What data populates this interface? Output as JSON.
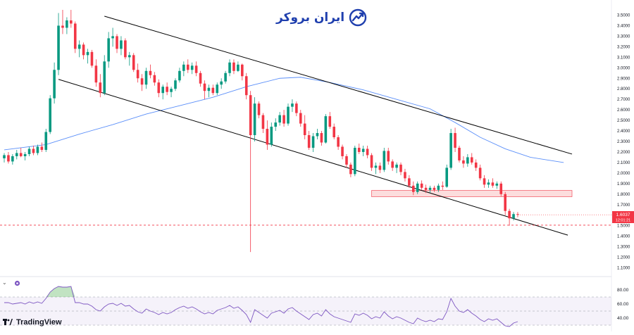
{
  "brand": {
    "name": "ایران بروکر",
    "logo_icon": "trend-arrow-logo-icon"
  },
  "footer": {
    "platform": "TradingView",
    "logo_icon": "tradingview-logo-icon"
  },
  "price_label": {
    "price": "1.6037",
    "countdown": "12:01:21",
    "color": "#f23645"
  },
  "controls": {
    "collapse_icon": "chevron-down-icon",
    "settings_icon": "indicator-gear-icon"
  },
  "chart_data": [
    {
      "type": "candlestick",
      "y_ticks": [
        "3.5000",
        "3.4000",
        "3.3000",
        "3.2000",
        "3.1000",
        "3.0000",
        "2.9000",
        "2.8000",
        "2.7000",
        "2.6000",
        "2.5000",
        "2.4000",
        "2.3000",
        "2.2000",
        "2.1000",
        "2.0000",
        "1.9000",
        "1.8000",
        "1.7000",
        "1.6000",
        "1.5000",
        "1.4000",
        "1.3000",
        "1.2000",
        "1.1000"
      ],
      "ylim": [
        1.05,
        3.55
      ],
      "x_range": [
        0,
        136
      ],
      "candles": [
        [
          0,
          2.14,
          2.19,
          2.1,
          2.17
        ],
        [
          1,
          2.17,
          2.2,
          2.09,
          2.11
        ],
        [
          2,
          2.11,
          2.18,
          2.08,
          2.16
        ],
        [
          3,
          2.16,
          2.22,
          2.13,
          2.19
        ],
        [
          4,
          2.19,
          2.24,
          2.15,
          2.16
        ],
        [
          5,
          2.16,
          2.2,
          2.12,
          2.18
        ],
        [
          6,
          2.18,
          2.25,
          2.16,
          2.23
        ],
        [
          7,
          2.23,
          2.26,
          2.17,
          2.19
        ],
        [
          8,
          2.19,
          2.27,
          2.17,
          2.25
        ],
        [
          9,
          2.25,
          2.29,
          2.2,
          2.22
        ],
        [
          10,
          2.22,
          2.42,
          2.2,
          2.39
        ],
        [
          11,
          2.39,
          2.74,
          2.37,
          2.71
        ],
        [
          12,
          2.71,
          3.05,
          2.66,
          2.98
        ],
        [
          13,
          2.98,
          3.52,
          2.93,
          3.4
        ],
        [
          14,
          3.4,
          3.55,
          3.32,
          3.38
        ],
        [
          15,
          3.38,
          3.48,
          3.32,
          3.45
        ],
        [
          16,
          3.45,
          3.55,
          3.38,
          3.42
        ],
        [
          17,
          3.42,
          3.44,
          3.14,
          3.18
        ],
        [
          18,
          3.18,
          3.26,
          3.1,
          3.22
        ],
        [
          19,
          3.22,
          3.24,
          3.08,
          3.12
        ],
        [
          20,
          3.12,
          3.18,
          3.04,
          3.15
        ],
        [
          21,
          3.15,
          3.17,
          3.0,
          3.02
        ],
        [
          22,
          3.02,
          3.08,
          2.82,
          2.86
        ],
        [
          23,
          2.86,
          2.94,
          2.72,
          2.76
        ],
        [
          24,
          2.76,
          3.12,
          2.74,
          3.06
        ],
        [
          25,
          3.06,
          3.34,
          3.0,
          3.28
        ],
        [
          26,
          3.28,
          3.38,
          3.2,
          3.3
        ],
        [
          27,
          3.3,
          3.32,
          3.14,
          3.18
        ],
        [
          28,
          3.18,
          3.3,
          3.12,
          3.26
        ],
        [
          29,
          3.26,
          3.28,
          3.08,
          3.1
        ],
        [
          30,
          3.1,
          3.15,
          3.02,
          3.12
        ],
        [
          31,
          3.12,
          3.14,
          2.96,
          2.98
        ],
        [
          32,
          2.98,
          3.04,
          2.86,
          2.9
        ],
        [
          33,
          2.9,
          2.94,
          2.78,
          2.84
        ],
        [
          34,
          2.84,
          3.0,
          2.8,
          2.97
        ],
        [
          35,
          2.97,
          3.03,
          2.9,
          2.93
        ],
        [
          36,
          2.93,
          2.96,
          2.83,
          2.86
        ],
        [
          37,
          2.86,
          2.89,
          2.72,
          2.76
        ],
        [
          38,
          2.76,
          2.84,
          2.7,
          2.82
        ],
        [
          39,
          2.82,
          2.86,
          2.74,
          2.77
        ],
        [
          40,
          2.77,
          2.82,
          2.72,
          2.8
        ],
        [
          41,
          2.8,
          2.9,
          2.78,
          2.88
        ],
        [
          42,
          2.88,
          3.0,
          2.86,
          2.97
        ],
        [
          43,
          2.97,
          3.06,
          2.92,
          3.03
        ],
        [
          44,
          3.03,
          3.08,
          2.95,
          2.98
        ],
        [
          45,
          2.98,
          3.05,
          2.94,
          3.02
        ],
        [
          46,
          3.02,
          3.06,
          2.92,
          2.95
        ],
        [
          47,
          2.95,
          2.97,
          2.82,
          2.85
        ],
        [
          48,
          2.85,
          2.88,
          2.7,
          2.78
        ],
        [
          49,
          2.78,
          2.84,
          2.72,
          2.81
        ],
        [
          50,
          2.81,
          2.84,
          2.74,
          2.76
        ],
        [
          51,
          2.76,
          2.86,
          2.74,
          2.84
        ],
        [
          52,
          2.84,
          2.9,
          2.8,
          2.87
        ],
        [
          53,
          2.87,
          2.97,
          2.85,
          2.95
        ],
        [
          54,
          2.95,
          3.08,
          2.92,
          3.05
        ],
        [
          55,
          3.05,
          3.08,
          2.94,
          2.97
        ],
        [
          56,
          2.97,
          3.06,
          2.96,
          3.03
        ],
        [
          57,
          3.03,
          3.04,
          2.88,
          2.92
        ],
        [
          58,
          2.92,
          2.95,
          2.7,
          2.74
        ],
        [
          59,
          2.74,
          2.78,
          1.25,
          2.36
        ],
        [
          60,
          2.36,
          2.72,
          2.3,
          2.66
        ],
        [
          61,
          2.66,
          2.68,
          2.52,
          2.55
        ],
        [
          62,
          2.55,
          2.57,
          2.38,
          2.42
        ],
        [
          63,
          2.42,
          2.5,
          2.22,
          2.27
        ],
        [
          64,
          2.27,
          2.48,
          2.25,
          2.44
        ],
        [
          65,
          2.44,
          2.52,
          2.4,
          2.48
        ],
        [
          66,
          2.48,
          2.58,
          2.45,
          2.55
        ],
        [
          67,
          2.55,
          2.6,
          2.44,
          2.47
        ],
        [
          68,
          2.47,
          2.66,
          2.45,
          2.63
        ],
        [
          69,
          2.63,
          2.7,
          2.58,
          2.66
        ],
        [
          70,
          2.66,
          2.68,
          2.54,
          2.57
        ],
        [
          71,
          2.57,
          2.6,
          2.44,
          2.47
        ],
        [
          72,
          2.47,
          2.55,
          2.32,
          2.36
        ],
        [
          73,
          2.36,
          2.4,
          2.22,
          2.24
        ],
        [
          74,
          2.24,
          2.38,
          2.2,
          2.35
        ],
        [
          75,
          2.35,
          2.42,
          2.32,
          2.38
        ],
        [
          76,
          2.38,
          2.4,
          2.26,
          2.29
        ],
        [
          77,
          2.29,
          2.56,
          2.28,
          2.54
        ],
        [
          78,
          2.54,
          2.58,
          2.42,
          2.44
        ],
        [
          79,
          2.44,
          2.47,
          2.32,
          2.34
        ],
        [
          80,
          2.34,
          2.36,
          2.22,
          2.25
        ],
        [
          81,
          2.25,
          2.27,
          2.13,
          2.16
        ],
        [
          82,
          2.16,
          2.18,
          2.05,
          2.08
        ],
        [
          83,
          2.08,
          2.1,
          1.96,
          1.99
        ],
        [
          84,
          1.99,
          2.26,
          1.97,
          2.24
        ],
        [
          85,
          2.24,
          2.28,
          2.18,
          2.2
        ],
        [
          86,
          2.2,
          2.26,
          2.16,
          2.23
        ],
        [
          87,
          2.23,
          2.26,
          2.14,
          2.17
        ],
        [
          88,
          2.17,
          2.19,
          2.02,
          2.05
        ],
        [
          89,
          2.05,
          2.1,
          1.99,
          2.07
        ],
        [
          90,
          2.07,
          2.1,
          2.0,
          2.03
        ],
        [
          91,
          2.03,
          2.24,
          2.01,
          2.21
        ],
        [
          92,
          2.21,
          2.24,
          2.08,
          2.11
        ],
        [
          93,
          2.11,
          2.13,
          2.02,
          2.05
        ],
        [
          94,
          2.05,
          2.1,
          2.0,
          2.08
        ],
        [
          95,
          2.08,
          2.1,
          1.98,
          2.01
        ],
        [
          96,
          2.01,
          2.04,
          1.92,
          1.95
        ],
        [
          97,
          1.95,
          1.98,
          1.86,
          1.88
        ],
        [
          98,
          1.88,
          1.92,
          1.79,
          1.82
        ],
        [
          99,
          1.82,
          1.92,
          1.8,
          1.9
        ],
        [
          100,
          1.9,
          1.93,
          1.84,
          1.86
        ],
        [
          101,
          1.86,
          1.89,
          1.81,
          1.84
        ],
        [
          102,
          1.84,
          1.88,
          1.81,
          1.86
        ],
        [
          103,
          1.86,
          1.88,
          1.82,
          1.84
        ],
        [
          104,
          1.84,
          1.9,
          1.82,
          1.88
        ],
        [
          105,
          1.88,
          1.92,
          1.84,
          1.87
        ],
        [
          106,
          1.87,
          2.08,
          1.86,
          2.05
        ],
        [
          107,
          2.05,
          2.42,
          2.03,
          2.38
        ],
        [
          108,
          2.38,
          2.43,
          2.2,
          2.24
        ],
        [
          109,
          2.24,
          2.26,
          2.1,
          2.12
        ],
        [
          110,
          2.12,
          2.16,
          2.05,
          2.09
        ],
        [
          111,
          2.09,
          2.18,
          2.06,
          2.15
        ],
        [
          112,
          2.15,
          2.19,
          2.08,
          2.1
        ],
        [
          113,
          2.1,
          2.13,
          2.02,
          2.05
        ],
        [
          114,
          2.05,
          2.08,
          1.93,
          1.95
        ],
        [
          115,
          1.95,
          1.98,
          1.86,
          1.89
        ],
        [
          116,
          1.89,
          1.94,
          1.86,
          1.91
        ],
        [
          117,
          1.91,
          1.95,
          1.86,
          1.88
        ],
        [
          118,
          1.88,
          1.92,
          1.85,
          1.9
        ],
        [
          119,
          1.9,
          1.92,
          1.78,
          1.8
        ],
        [
          120,
          1.8,
          1.82,
          1.6,
          1.64
        ],
        [
          121,
          1.64,
          1.66,
          1.5,
          1.57
        ],
        [
          122,
          1.57,
          1.63,
          1.55,
          1.61
        ],
        [
          123,
          1.61,
          1.63,
          1.58,
          1.6037
        ]
      ],
      "moving_average": [
        [
          0,
          2.22
        ],
        [
          10,
          2.27
        ],
        [
          18,
          2.37
        ],
        [
          26,
          2.46
        ],
        [
          34,
          2.56
        ],
        [
          42,
          2.64
        ],
        [
          50,
          2.72
        ],
        [
          58,
          2.82
        ],
        [
          62,
          2.86
        ],
        [
          66,
          2.9
        ],
        [
          71,
          2.91
        ],
        [
          78,
          2.86
        ],
        [
          86,
          2.79
        ],
        [
          94,
          2.7
        ],
        [
          102,
          2.61
        ],
        [
          108,
          2.48
        ],
        [
          114,
          2.34
        ],
        [
          120,
          2.23
        ],
        [
          126,
          2.15
        ],
        [
          134,
          2.1
        ]
      ],
      "trend_lines": [
        {
          "role": "upper",
          "from": [
            24,
            3.49
          ],
          "to": [
            136,
            2.18
          ]
        },
        {
          "role": "lower",
          "from": [
            13,
            2.89
          ],
          "to": [
            135,
            1.41
          ]
        }
      ],
      "zone": {
        "x": [
          88,
          136
        ],
        "y": [
          1.775,
          1.835
        ],
        "color": "#f8b4b4"
      },
      "dashed_level": 1.505,
      "colors": {
        "up": "#089981",
        "down": "#f23645",
        "ma": "#5b8ff9",
        "channel": "#000000"
      }
    },
    {
      "type": "line",
      "indicator": "RSI",
      "y_ticks": [
        "80.00",
        "60.00",
        "40.00"
      ],
      "ylim": [
        28,
        90
      ],
      "band": [
        30,
        70
      ],
      "x_range": [
        0,
        136
      ],
      "values": [
        62,
        62,
        60,
        61,
        62,
        60,
        63,
        61,
        63,
        61,
        68,
        77,
        82,
        85,
        84,
        84,
        85,
        62,
        62,
        60,
        60,
        57,
        52,
        50,
        56,
        60,
        61,
        58,
        61,
        57,
        58,
        53,
        49,
        47,
        53,
        50,
        48,
        45,
        48,
        46,
        48,
        52,
        55,
        57,
        54,
        56,
        53,
        49,
        46,
        48,
        46,
        51,
        53,
        55,
        58,
        54,
        56,
        51,
        45,
        34,
        52,
        48,
        44,
        40,
        47,
        49,
        51,
        47,
        53,
        55,
        50,
        46,
        42,
        38,
        45,
        47,
        43,
        52,
        46,
        42,
        40,
        38,
        36,
        34,
        46,
        44,
        47,
        44,
        39,
        42,
        40,
        49,
        43,
        39,
        42,
        40,
        37,
        34,
        32,
        40,
        37,
        35,
        37,
        35,
        39,
        38,
        49,
        68,
        57,
        50,
        48,
        52,
        47,
        43,
        38,
        35,
        39,
        37,
        39,
        34,
        29,
        28,
        33,
        35
      ]
    }
  ]
}
